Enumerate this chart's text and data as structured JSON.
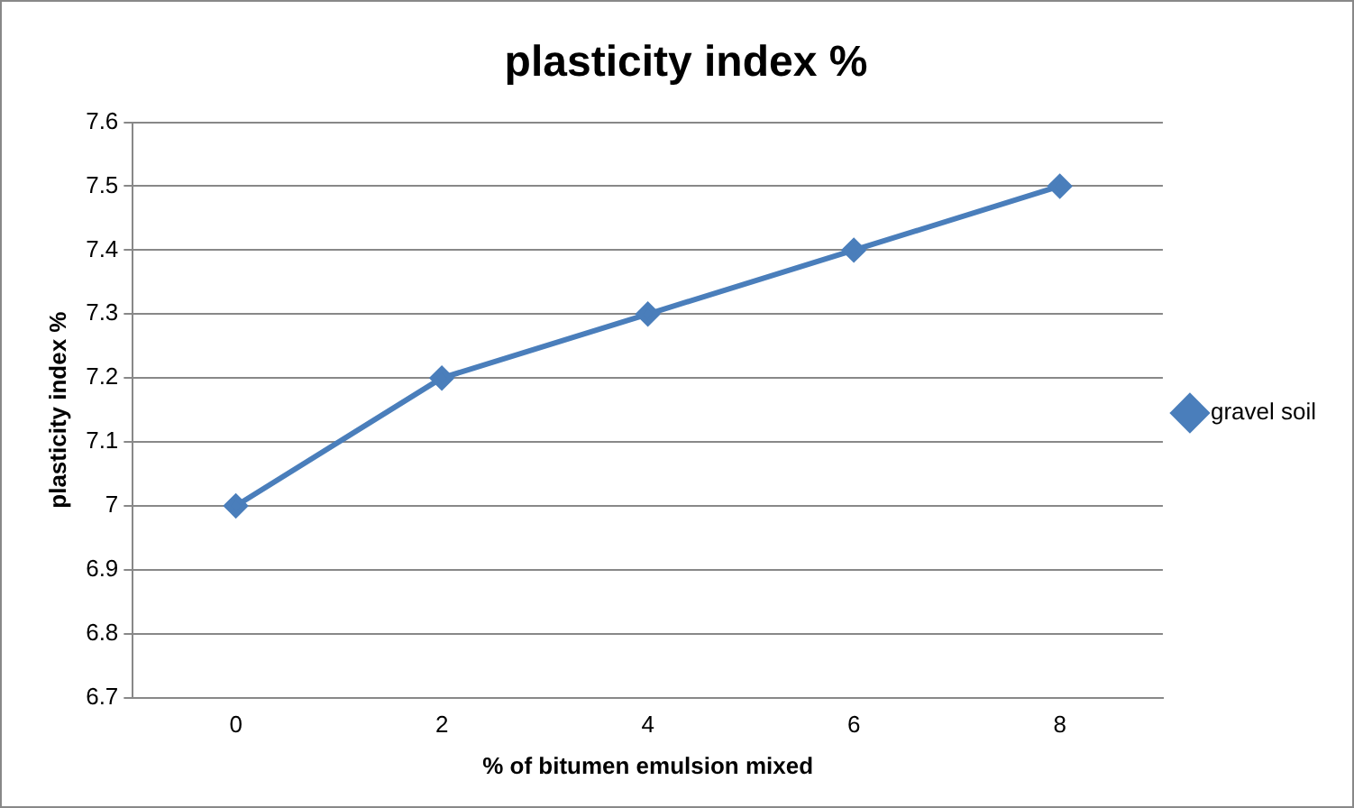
{
  "chart_data": {
    "type": "line",
    "title": "plasticity index %",
    "xlabel": "% of bitumen emulsion mixed",
    "ylabel": "plasticity index %",
    "categories": [
      "0",
      "2",
      "4",
      "6",
      "8"
    ],
    "series": [
      {
        "name": "gravel soil",
        "color": "#4a7ebb",
        "values": [
          7.0,
          7.2,
          7.3,
          7.4,
          7.5
        ]
      }
    ],
    "ylim": [
      6.7,
      7.6
    ],
    "yticks": [
      6.7,
      6.8,
      6.9,
      7,
      7.1,
      7.2,
      7.3,
      7.4,
      7.5,
      7.6
    ],
    "grid": "y",
    "legend": "right",
    "marker": "diamond",
    "line_style": "solid"
  }
}
